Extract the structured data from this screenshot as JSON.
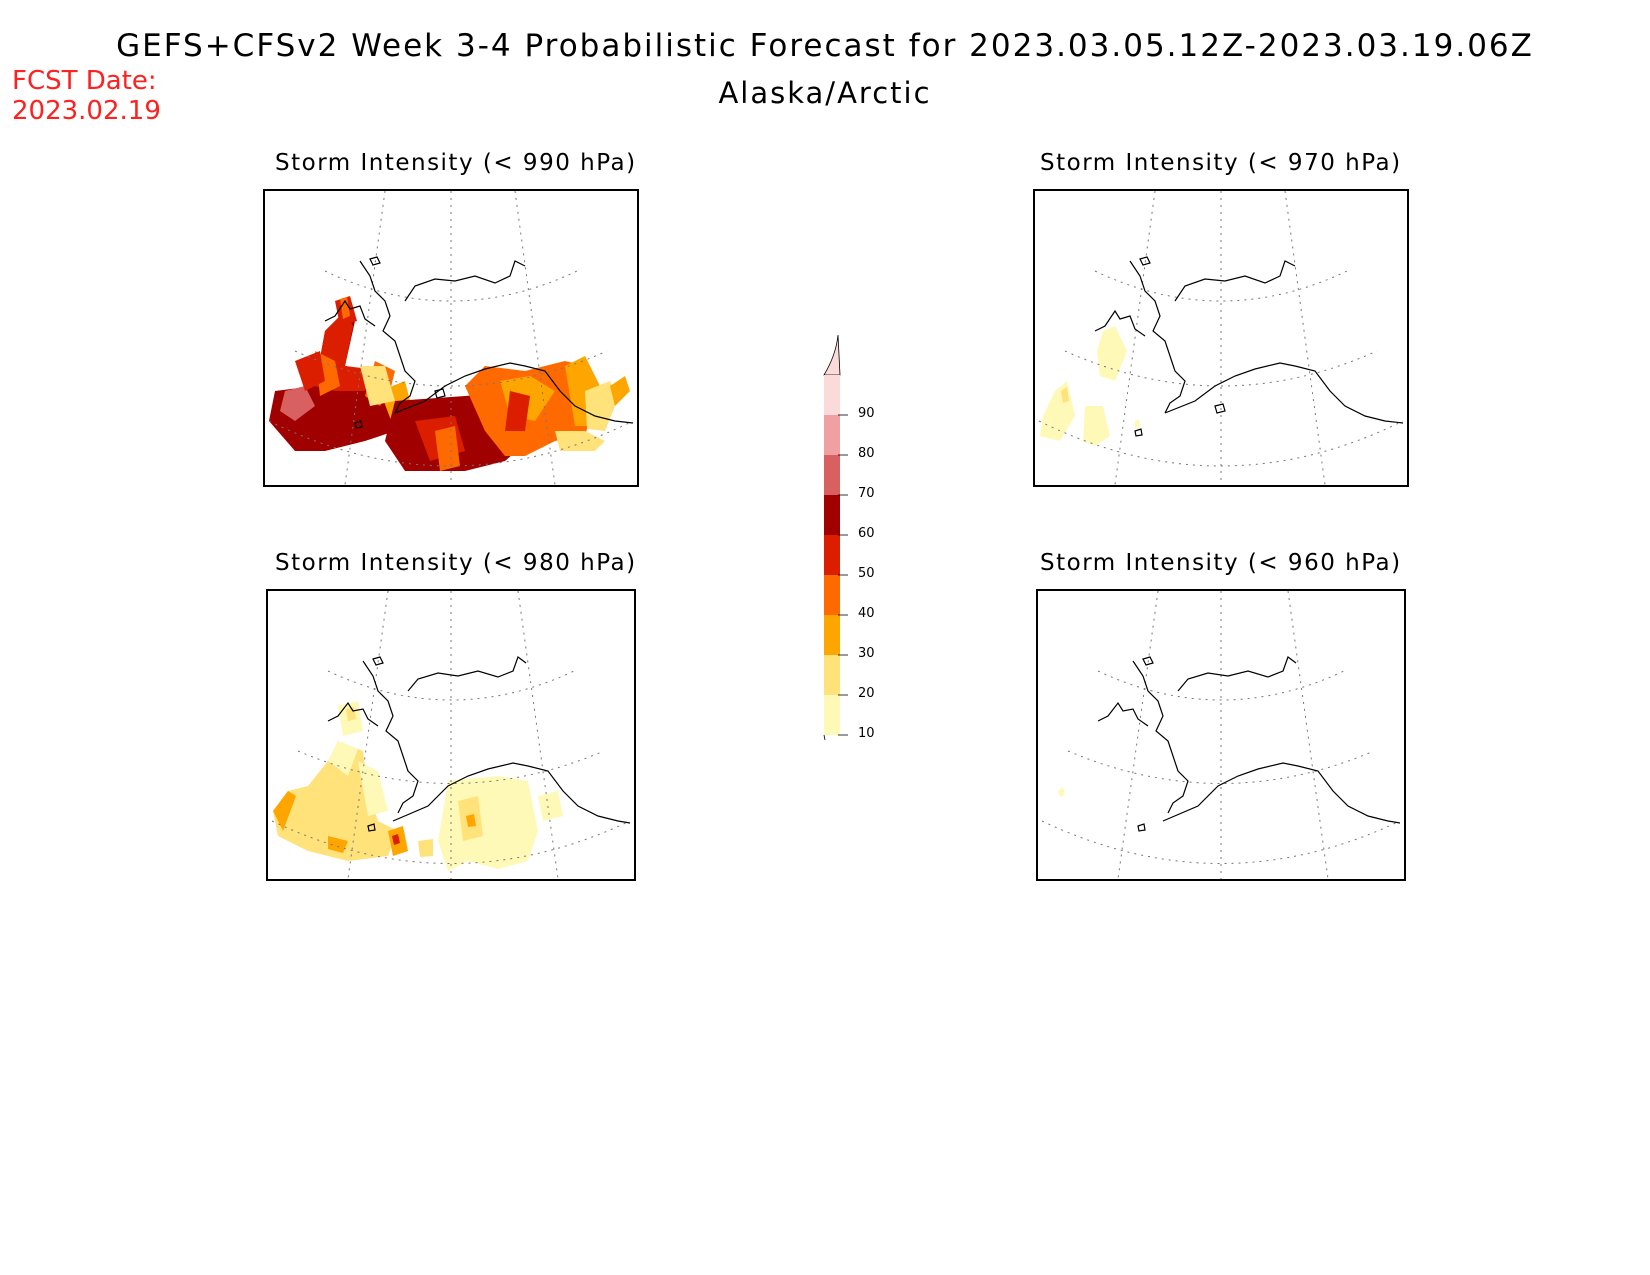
{
  "header": {
    "title": "GEFS+CFSv2 Week 3-4 Probabilistic Forecast for 2023.03.05.12Z-2023.03.19.06Z",
    "region": "Alaska/Arctic",
    "fcst_label": "FCST Date:",
    "fcst_date": "2023.02.19"
  },
  "panels": [
    {
      "id": "p990",
      "title": "Storm Intensity (< 990 hPa)"
    },
    {
      "id": "p970",
      "title": "Storm Intensity (< 970 hPa)"
    },
    {
      "id": "p980",
      "title": "Storm Intensity (< 980 hPa)"
    },
    {
      "id": "p960",
      "title": "Storm Intensity (< 960 hPa)"
    }
  ],
  "colorbar": {
    "levels": [
      "10",
      "20",
      "30",
      "40",
      "50",
      "60",
      "70",
      "80",
      "90"
    ],
    "colors": [
      "#fff9b8",
      "#ffe27a",
      "#ffa500",
      "#ff6a00",
      "#dc1e00",
      "#a00000",
      "#d96060",
      "#f0a0a0",
      "#fbdada"
    ]
  }
}
